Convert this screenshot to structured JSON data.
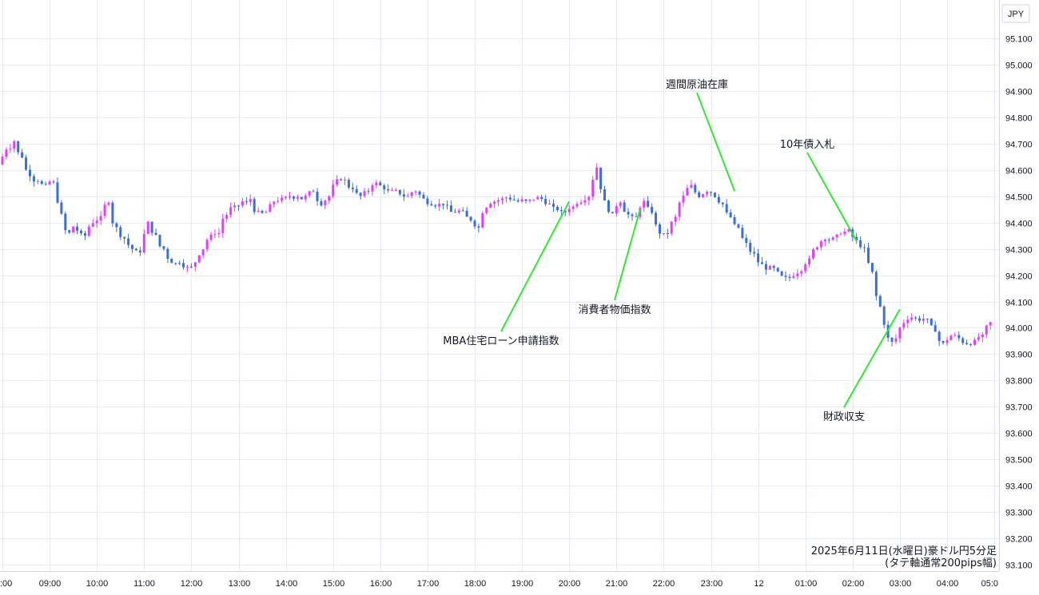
{
  "chart_data": {
    "type": "candlestick",
    "currency": "JPY",
    "caption_line1": "2025年6月11日(水曜日)豪ドル円5分足",
    "caption_line2": "(タテ軸通常200pips幅)",
    "ylim": [
      93.1,
      95.1
    ],
    "y_ticks": [
      "95.100",
      "95.000",
      "94.900",
      "94.800",
      "94.700",
      "94.600",
      "94.500",
      "94.400",
      "94.300",
      "94.200",
      "94.100",
      "94.000",
      "93.900",
      "93.800",
      "93.700",
      "93.600",
      "93.500",
      "93.400",
      "93.300",
      "93.200",
      "93.100"
    ],
    "x_ticks": [
      ":00",
      "09:00",
      "10:00",
      "11:00",
      "12:00",
      "13:00",
      "14:00",
      "15:00",
      "16:00",
      "17:00",
      "18:00",
      "19:00",
      "20:00",
      "21:00",
      "22:00",
      "23:00",
      "12",
      "01:00",
      "02:00",
      "03:00",
      "04:00",
      "05:0"
    ],
    "up_color": "#e040fb",
    "down_color": "#3b6fd8",
    "annotations": [
      {
        "text": "週間原油在庫",
        "time": "23:30",
        "price": 94.52
      },
      {
        "text": "10年債入札",
        "time": "02:05",
        "price": 94.33
      },
      {
        "text": "MBA住宅ローン申請指数",
        "time": "20:00",
        "price": 94.48
      },
      {
        "text": "消費者物価指数",
        "time": "21:30",
        "price": 94.45
      },
      {
        "text": "財政収支",
        "time": "03:00",
        "price": 94.07
      }
    ],
    "ohlc_path": [
      [
        "08:00",
        94.62,
        94.68
      ],
      [
        "08:10",
        94.66,
        94.71
      ],
      [
        "08:20",
        94.68,
        94.65
      ],
      [
        "08:30",
        94.62,
        94.58
      ],
      [
        "08:40",
        94.56,
        94.56
      ],
      [
        "08:50",
        94.55,
        94.54
      ],
      [
        "09:00",
        94.56,
        94.55
      ],
      [
        "09:10",
        94.53,
        94.43
      ],
      [
        "09:20",
        94.38,
        94.36
      ],
      [
        "09:30",
        94.4,
        94.37
      ],
      [
        "09:40",
        94.36,
        94.35
      ],
      [
        "09:50",
        94.37,
        94.4
      ],
      [
        "10:00",
        94.4,
        94.42
      ],
      [
        "10:10",
        94.45,
        94.48
      ],
      [
        "10:20",
        94.42,
        94.38
      ],
      [
        "10:30",
        94.36,
        94.34
      ],
      [
        "10:40",
        94.33,
        94.3
      ],
      [
        "10:50",
        94.29,
        94.29
      ],
      [
        "11:00",
        94.31,
        94.4
      ],
      [
        "11:10",
        94.38,
        94.35
      ],
      [
        "11:20",
        94.32,
        94.3
      ],
      [
        "11:30",
        94.28,
        94.25
      ],
      [
        "11:40",
        94.24,
        94.25
      ],
      [
        "11:50",
        94.24,
        94.23
      ],
      [
        "12:00",
        94.21,
        94.25
      ],
      [
        "12:10",
        94.26,
        94.3
      ],
      [
        "12:20",
        94.32,
        94.35
      ],
      [
        "12:30",
        94.36,
        94.36
      ],
      [
        "12:40",
        94.4,
        94.43
      ],
      [
        "12:50",
        94.45,
        94.46
      ],
      [
        "13:00",
        94.45,
        94.48
      ],
      [
        "13:10",
        94.46,
        94.49
      ],
      [
        "13:20",
        94.45,
        94.44
      ],
      [
        "13:30",
        94.43,
        94.44
      ],
      [
        "13:40",
        94.45,
        94.48
      ],
      [
        "13:50",
        94.48,
        94.49
      ],
      [
        "14:00",
        94.49,
        94.5
      ],
      [
        "14:10",
        94.49,
        94.5
      ],
      [
        "14:20",
        94.48,
        94.5
      ],
      [
        "14:30",
        94.51,
        94.52
      ],
      [
        "14:40",
        94.5,
        94.47
      ],
      [
        "14:50",
        94.47,
        94.5
      ],
      [
        "15:00",
        94.52,
        94.56
      ],
      [
        "15:10",
        94.57,
        94.56
      ],
      [
        "15:20",
        94.54,
        94.53
      ],
      [
        "15:30",
        94.52,
        94.5
      ],
      [
        "15:40",
        94.51,
        94.52
      ],
      [
        "15:50",
        94.54,
        94.55
      ],
      [
        "16:00",
        94.55,
        94.53
      ],
      [
        "16:10",
        94.52,
        94.52
      ],
      [
        "16:20",
        94.53,
        94.51
      ],
      [
        "16:30",
        94.5,
        94.5
      ],
      [
        "16:40",
        94.51,
        94.52
      ],
      [
        "16:50",
        94.52,
        94.49
      ],
      [
        "17:00",
        94.48,
        94.47
      ],
      [
        "17:10",
        94.46,
        94.47
      ],
      [
        "17:20",
        94.48,
        94.46
      ],
      [
        "17:30",
        94.44,
        94.44
      ],
      [
        "17:40",
        94.45,
        94.44
      ],
      [
        "17:50",
        94.43,
        94.41
      ],
      [
        "18:00",
        94.4,
        94.38
      ],
      [
        "18:10",
        94.42,
        94.46
      ],
      [
        "18:20",
        94.47,
        94.48
      ],
      [
        "18:30",
        94.48,
        94.49
      ],
      [
        "18:40",
        94.5,
        94.49
      ],
      [
        "18:50",
        94.49,
        94.48
      ],
      [
        "19:00",
        94.49,
        94.48
      ],
      [
        "19:10",
        94.48,
        94.49
      ],
      [
        "19:20",
        94.5,
        94.49
      ],
      [
        "19:30",
        94.48,
        94.47
      ],
      [
        "19:40",
        94.46,
        94.45
      ],
      [
        "19:50",
        94.44,
        94.44
      ],
      [
        "20:00",
        94.45,
        94.46
      ],
      [
        "20:10",
        94.47,
        94.48
      ],
      [
        "20:20",
        94.48,
        94.5
      ],
      [
        "20:30",
        94.52,
        94.61
      ],
      [
        "20:40",
        94.58,
        94.48
      ],
      [
        "20:50",
        94.46,
        94.43
      ],
      [
        "21:00",
        94.45,
        94.48
      ],
      [
        "21:10",
        94.46,
        94.43
      ],
      [
        "21:20",
        94.42,
        94.42
      ],
      [
        "21:30",
        94.44,
        94.48
      ],
      [
        "21:40",
        94.47,
        94.44
      ],
      [
        "21:50",
        94.42,
        94.36
      ],
      [
        "22:00",
        94.35,
        94.36
      ],
      [
        "22:10",
        94.38,
        94.42
      ],
      [
        "22:20",
        94.45,
        94.5
      ],
      [
        "22:30",
        94.52,
        94.54
      ],
      [
        "22:40",
        94.53,
        94.5
      ],
      [
        "22:50",
        94.5,
        94.52
      ],
      [
        "23:00",
        94.53,
        94.5
      ],
      [
        "23:10",
        94.49,
        94.47
      ],
      [
        "23:20",
        94.45,
        94.42
      ],
      [
        "23:30",
        94.4,
        94.38
      ],
      [
        "23:40",
        94.36,
        94.32
      ],
      [
        "23:50",
        94.3,
        94.28
      ],
      [
        "00:00",
        94.26,
        94.24
      ],
      [
        "00:10",
        94.22,
        94.23
      ],
      [
        "00:20",
        94.24,
        94.21
      ],
      [
        "00:30",
        94.2,
        94.19
      ],
      [
        "00:40",
        94.18,
        94.2
      ],
      [
        "00:50",
        94.2,
        94.22
      ],
      [
        "01:00",
        94.23,
        94.26
      ],
      [
        "01:10",
        94.28,
        94.31
      ],
      [
        "01:20",
        94.32,
        94.34
      ],
      [
        "01:30",
        94.33,
        94.34
      ],
      [
        "01:40",
        94.34,
        94.36
      ],
      [
        "01:50",
        94.36,
        94.37
      ],
      [
        "02:00",
        94.36,
        94.33
      ],
      [
        "02:10",
        94.32,
        94.3
      ],
      [
        "02:20",
        94.28,
        94.21
      ],
      [
        "02:30",
        94.16,
        94.08
      ],
      [
        "02:40",
        94.07,
        93.96
      ],
      [
        "02:50",
        93.93,
        93.96
      ],
      [
        "03:00",
        93.98,
        94.02
      ],
      [
        "03:10",
        94.03,
        94.04
      ],
      [
        "03:20",
        94.04,
        94.03
      ],
      [
        "03:30",
        94.04,
        94.03
      ],
      [
        "03:40",
        94.02,
        93.99
      ],
      [
        "03:50",
        93.96,
        93.94
      ],
      [
        "04:00",
        93.94,
        93.97
      ],
      [
        "04:10",
        93.98,
        93.96
      ],
      [
        "04:20",
        93.95,
        93.94
      ],
      [
        "04:30",
        93.93,
        93.95
      ],
      [
        "04:40",
        93.96,
        93.97
      ],
      [
        "04:50",
        93.99,
        94.02
      ]
    ]
  }
}
